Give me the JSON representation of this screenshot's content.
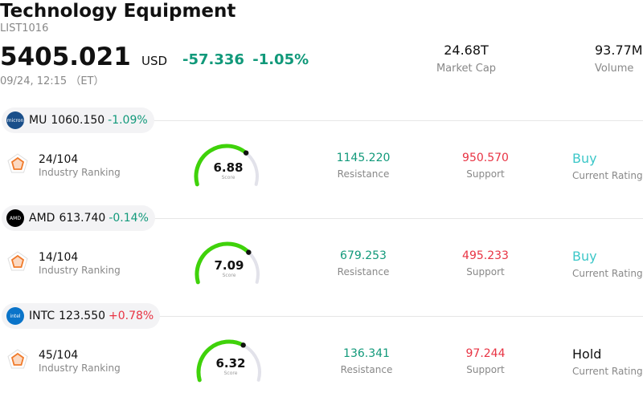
{
  "header": {
    "title": "Technology Equipment",
    "code": "LIST1016",
    "price": "5405.021",
    "currency": "USD",
    "change": "-57.336",
    "change_pct": "-1.05%",
    "time": "09/24, 12:15 （ET）",
    "market_cap_value": "24.68T",
    "market_cap_label": "Market Cap",
    "volume_value": "93.77M",
    "volume_label": "Volume"
  },
  "stocks": [
    {
      "ticker": "MU",
      "price": "1060.150",
      "pct": "-1.09%",
      "pct_dir": "pos",
      "logo_color": "#1a4f8a",
      "logo_text": "micron",
      "rank": "24/104",
      "rank_label": "Industry Ranking",
      "score": "6.88",
      "score_value": 6.88,
      "score_label": "Score",
      "resistance": "1145.220",
      "resistance_label": "Resistance",
      "support": "950.570",
      "support_label": "Support",
      "rating": "Buy",
      "rating_label": "Current Rating",
      "rating_color": "#3cc7c8"
    },
    {
      "ticker": "AMD",
      "price": "613.740",
      "pct": "-0.14%",
      "pct_dir": "pos",
      "logo_color": "#000000",
      "logo_text": "AMD",
      "rank": "14/104",
      "rank_label": "Industry Ranking",
      "score": "7.09",
      "score_value": 7.09,
      "score_label": "Score",
      "resistance": "679.253",
      "resistance_label": "Resistance",
      "support": "495.233",
      "support_label": "Support",
      "rating": "Buy",
      "rating_label": "Current Rating",
      "rating_color": "#3cc7c8"
    },
    {
      "ticker": "INTC",
      "price": "123.550",
      "pct": "+0.78%",
      "pct_dir": "neg",
      "logo_color": "#0a74c9",
      "logo_text": "intel",
      "rank": "45/104",
      "rank_label": "Industry Ranking",
      "score": "6.32",
      "score_value": 6.32,
      "score_label": "Score",
      "resistance": "136.341",
      "resistance_label": "Resistance",
      "support": "97.244",
      "support_label": "Support",
      "rating": "Hold",
      "rating_label": "Current Rating",
      "rating_color": "#111111"
    }
  ]
}
